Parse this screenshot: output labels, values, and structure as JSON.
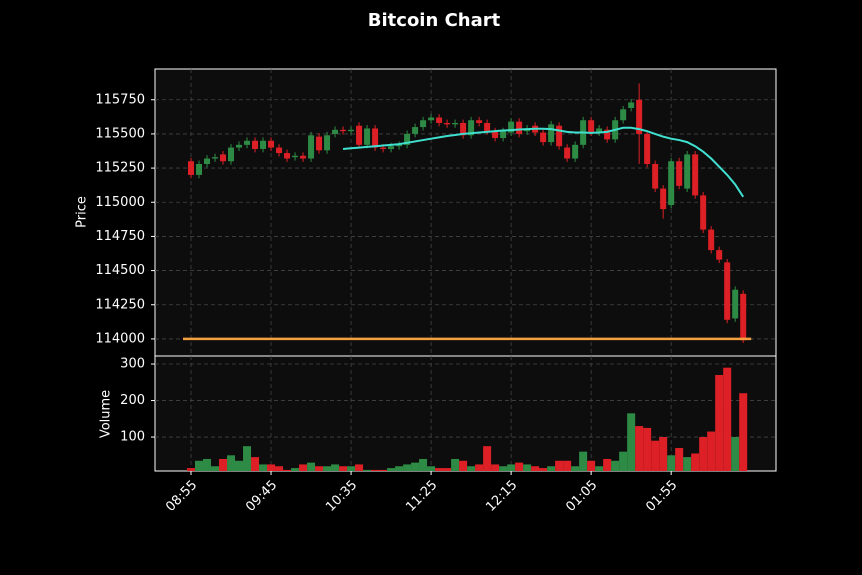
{
  "chart_data": {
    "type": "candlestick",
    "title": "Bitcoin Chart",
    "ylabel": "Price",
    "volume_label": "Volume",
    "xlim": [
      -4.5,
      73.1
    ],
    "xticks": [
      {
        "value": 0,
        "label": "08:55"
      },
      {
        "value": 10,
        "label": "09:45"
      },
      {
        "value": 20,
        "label": "10:35"
      },
      {
        "value": 30,
        "label": "11:25"
      },
      {
        "value": 40,
        "label": "12:15"
      },
      {
        "value": 50,
        "label": "01:05"
      },
      {
        "value": 60,
        "label": "01:55"
      }
    ],
    "ylim": [
      113875,
      115975
    ],
    "yticks": [
      114000,
      114250,
      114500,
      114750,
      115000,
      115250,
      115500,
      115750
    ],
    "open": [
      115300,
      115200,
      115280,
      115320,
      115350,
      115300,
      115400,
      115420,
      115450,
      115390,
      115450,
      115400,
      115360,
      115330,
      115340,
      115320,
      115480,
      115380,
      115500,
      115530,
      115520,
      115560,
      115420,
      115540,
      115400,
      115390,
      115410,
      115420,
      115500,
      115550,
      115600,
      115620,
      115580,
      115570,
      115580,
      115490,
      115600,
      115580,
      115520,
      115470,
      115510,
      115590,
      115520,
      115560,
      115510,
      115440,
      115560,
      115400,
      115320,
      115420,
      115600,
      115510,
      115530,
      115460,
      115600,
      115690,
      115750,
      115500,
      115280,
      115100,
      114980,
      115300,
      115100,
      115350,
      115050,
      114800,
      114650,
      114560,
      114150,
      114330
    ],
    "high": [
      115325,
      115305,
      115345,
      115355,
      115375,
      115425,
      115445,
      115475,
      115475,
      115475,
      115475,
      115425,
      115385,
      115365,
      115365,
      115515,
      115505,
      115515,
      115555,
      115555,
      115555,
      115585,
      115565,
      115565,
      115425,
      115435,
      115445,
      115525,
      115575,
      115625,
      115645,
      115645,
      115605,
      115605,
      115605,
      115625,
      115625,
      115605,
      115545,
      115545,
      115615,
      115615,
      115565,
      115585,
      115535,
      115595,
      115585,
      115425,
      115445,
      115625,
      115625,
      115565,
      115555,
      115625,
      115705,
      115755,
      115870,
      115525,
      115305,
      115125,
      115325,
      115325,
      115375,
      115375,
      115075,
      114825,
      114675,
      114585,
      114385,
      114355
    ],
    "low": [
      115175,
      115175,
      115255,
      115295,
      115275,
      115275,
      115375,
      115395,
      115365,
      115365,
      115375,
      115335,
      115295,
      115305,
      115295,
      115295,
      115355,
      115355,
      115475,
      115495,
      115495,
      115395,
      115395,
      115375,
      115365,
      115365,
      115385,
      115395,
      115475,
      115525,
      115575,
      115555,
      115545,
      115545,
      115465,
      115465,
      115555,
      115495,
      115445,
      115445,
      115485,
      115475,
      115495,
      115485,
      115415,
      115415,
      115385,
      115295,
      115295,
      115395,
      115485,
      115485,
      115435,
      115435,
      115575,
      115665,
      115280,
      115255,
      115075,
      114880,
      114955,
      115095,
      115075,
      115025,
      114775,
      114625,
      114555,
      114115,
      114125,
      113970
    ],
    "close": [
      115200,
      115280,
      115320,
      115330,
      115300,
      115400,
      115420,
      115450,
      115390,
      115450,
      115400,
      115360,
      115320,
      115340,
      115320,
      115490,
      115380,
      115490,
      115530,
      115520,
      115530,
      115420,
      115540,
      115400,
      115390,
      115410,
      115420,
      115500,
      115550,
      115600,
      115620,
      115580,
      115570,
      115580,
      115490,
      115600,
      115580,
      115520,
      115470,
      115520,
      115590,
      115500,
      115540,
      115510,
      115440,
      115570,
      115410,
      115320,
      115420,
      115600,
      115510,
      115540,
      115460,
      115600,
      115680,
      115730,
      115500,
      115280,
      115100,
      114950,
      115300,
      115120,
      115350,
      115050,
      114800,
      114650,
      114580,
      114140,
      114360,
      113990
    ],
    "volume": [
      15,
      35,
      40,
      20,
      40,
      50,
      35,
      75,
      45,
      25,
      25,
      20,
      10,
      15,
      25,
      30,
      20,
      20,
      25,
      20,
      20,
      25,
      10,
      10,
      10,
      15,
      20,
      25,
      30,
      40,
      20,
      15,
      15,
      40,
      35,
      20,
      25,
      75,
      25,
      20,
      25,
      30,
      25,
      20,
      15,
      20,
      35,
      35,
      20,
      60,
      35,
      20,
      40,
      35,
      60,
      165,
      130,
      125,
      90,
      100,
      50,
      70,
      45,
      55,
      100,
      115,
      270,
      290,
      100,
      220
    ],
    "volume_ylim": [
      7,
      322
    ],
    "volume_yticks": [
      100,
      200,
      300
    ],
    "up_color": "#2e8b45",
    "down_color": "#dc2026",
    "sma": {
      "color": "#40e0d0",
      "values": [
        null,
        null,
        null,
        null,
        null,
        null,
        null,
        null,
        null,
        null,
        null,
        null,
        null,
        null,
        null,
        null,
        null,
        null,
        null,
        115390,
        115395,
        115400,
        115405,
        115410,
        115415,
        115420,
        115425,
        115435,
        115445,
        115455,
        115465,
        115475,
        115485,
        115492,
        115500,
        115505,
        115510,
        115515,
        115520,
        115525,
        115528,
        115532,
        115535,
        115538,
        115538,
        115535,
        115525,
        115515,
        115510,
        115510,
        115508,
        115510,
        115515,
        115530,
        115545,
        115545,
        115535,
        115520,
        115500,
        115480,
        115465,
        115455,
        115440,
        115410,
        115370,
        115320,
        115260,
        115200,
        115130,
        115040
      ]
    },
    "hline": {
      "value": 114000,
      "color": "#f5a040"
    },
    "grid": true
  }
}
